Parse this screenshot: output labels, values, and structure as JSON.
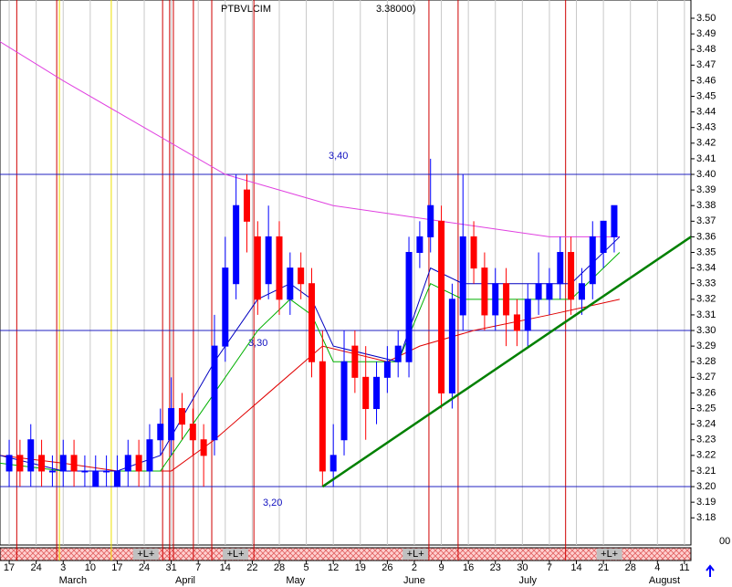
{
  "chart_data": {
    "type": "ohlc",
    "title": "PTBVLCIM",
    "title_tail": "3.38000)",
    "xlim": [
      -1.7,
      126.2
    ],
    "ylim": [
      3.1626,
      3.5117
    ],
    "x_grid": true,
    "xticks": [
      {
        "value": 0,
        "label": "17"
      },
      {
        "value": 5,
        "label": "24"
      },
      {
        "value": 10,
        "label": "3"
      },
      {
        "value": 15,
        "label": "10"
      },
      {
        "value": 20,
        "label": "17"
      },
      {
        "value": 25,
        "label": "24"
      },
      {
        "value": 30,
        "label": "31"
      },
      {
        "value": 35,
        "label": "7"
      },
      {
        "value": 40,
        "label": "14"
      },
      {
        "value": 45,
        "label": "22"
      },
      {
        "value": 50,
        "label": "28"
      },
      {
        "value": 55,
        "label": "5"
      },
      {
        "value": 60,
        "label": "12"
      },
      {
        "value": 65,
        "label": "19"
      },
      {
        "value": 70,
        "label": "26"
      },
      {
        "value": 75,
        "label": "2"
      },
      {
        "value": 80,
        "label": "9"
      },
      {
        "value": 85,
        "label": "16"
      },
      {
        "value": 90,
        "label": "23"
      },
      {
        "value": 95,
        "label": "30"
      },
      {
        "value": 100,
        "label": "7"
      },
      {
        "value": 105,
        "label": "14"
      },
      {
        "value": 110,
        "label": "21"
      },
      {
        "value": 115,
        "label": "28"
      },
      {
        "value": 120,
        "label": "4"
      },
      {
        "value": 125,
        "label": "11"
      }
    ],
    "month_ticks": [
      {
        "value": 11.8,
        "label": "March"
      },
      {
        "value": 32.6,
        "label": "April"
      },
      {
        "value": 53,
        "label": "May"
      },
      {
        "value": 75,
        "label": "June"
      },
      {
        "value": 96,
        "label": "July"
      },
      {
        "value": 121.3,
        "label": "August"
      }
    ],
    "yticks": [
      {
        "value": 3.18,
        "label": "3.18"
      },
      {
        "value": 3.19,
        "label": "3.19"
      },
      {
        "value": 3.2,
        "label": "3.20"
      },
      {
        "value": 3.21,
        "label": "3.21"
      },
      {
        "value": 3.22,
        "label": "3.22"
      },
      {
        "value": 3.23,
        "label": "3.23"
      },
      {
        "value": 3.24,
        "label": "3.24"
      },
      {
        "value": 3.25,
        "label": "3.25"
      },
      {
        "value": 3.26,
        "label": "3.26"
      },
      {
        "value": 3.27,
        "label": "3.27"
      },
      {
        "value": 3.28,
        "label": "3.28"
      },
      {
        "value": 3.29,
        "label": "3.29"
      },
      {
        "value": 3.3,
        "label": "3.30"
      },
      {
        "value": 3.31,
        "label": "3.31"
      },
      {
        "value": 3.32,
        "label": "3.32"
      },
      {
        "value": 3.33,
        "label": "3.33"
      },
      {
        "value": 3.34,
        "label": "3.34"
      },
      {
        "value": 3.35,
        "label": "3.35"
      },
      {
        "value": 3.36,
        "label": "3.36"
      },
      {
        "value": 3.37,
        "label": "3.37"
      },
      {
        "value": 3.38,
        "label": "3.38"
      },
      {
        "value": 3.39,
        "label": "3.39"
      },
      {
        "value": 3.4,
        "label": "3.40"
      },
      {
        "value": 3.41,
        "label": "3.41"
      },
      {
        "value": 3.42,
        "label": "3.42"
      },
      {
        "value": 3.43,
        "label": "3.43"
      },
      {
        "value": 3.44,
        "label": "3.44"
      },
      {
        "value": 3.45,
        "label": "3.45"
      },
      {
        "value": 3.46,
        "label": "3.46"
      },
      {
        "value": 3.47,
        "label": "3.47"
      },
      {
        "value": 3.48,
        "label": "3.48"
      },
      {
        "value": 3.49,
        "label": "3.49"
      },
      {
        "value": 3.5,
        "label": "3.50"
      }
    ],
    "volume_axis_label": "00",
    "up_color": "#0000ff",
    "down_color": "#ff0000",
    "ohlc": {
      "x": [
        0,
        2,
        4,
        6,
        8,
        10,
        12,
        14,
        16,
        18,
        20,
        22,
        24,
        26,
        28,
        30,
        32,
        34,
        36,
        38,
        40,
        42,
        44,
        46,
        48,
        50,
        52,
        54,
        56,
        58,
        60,
        62,
        64,
        66,
        68,
        70,
        72,
        74,
        76,
        78,
        80,
        82,
        84,
        86,
        88,
        90,
        92,
        94,
        96,
        98,
        100,
        102,
        104,
        106,
        108,
        110,
        112
      ],
      "open": [
        3.21,
        3.22,
        3.21,
        3.22,
        3.21,
        3.21,
        3.22,
        3.21,
        3.2,
        3.21,
        3.2,
        3.21,
        3.22,
        3.21,
        3.23,
        3.23,
        3.25,
        3.24,
        3.23,
        3.23,
        3.29,
        3.33,
        3.39,
        3.36,
        3.33,
        3.36,
        3.32,
        3.34,
        3.33,
        3.28,
        3.21,
        3.23,
        3.29,
        3.27,
        3.25,
        3.27,
        3.28,
        3.28,
        3.35,
        3.36,
        3.37,
        3.26,
        3.31,
        3.36,
        3.34,
        3.31,
        3.33,
        3.31,
        3.3,
        3.32,
        3.32,
        3.33,
        3.35,
        3.32,
        3.33,
        3.35,
        3.36
      ],
      "high": [
        3.23,
        3.23,
        3.24,
        3.23,
        3.22,
        3.23,
        3.23,
        3.22,
        3.22,
        3.22,
        3.22,
        3.23,
        3.23,
        3.24,
        3.25,
        3.27,
        3.26,
        3.25,
        3.24,
        3.31,
        3.36,
        3.4,
        3.4,
        3.37,
        3.38,
        3.37,
        3.35,
        3.35,
        3.34,
        3.3,
        3.24,
        3.3,
        3.3,
        3.29,
        3.28,
        3.29,
        3.3,
        3.36,
        3.37,
        3.41,
        3.38,
        3.33,
        3.4,
        3.37,
        3.35,
        3.34,
        3.34,
        3.32,
        3.33,
        3.35,
        3.34,
        3.36,
        3.36,
        3.34,
        3.37,
        3.37,
        3.38
      ],
      "low": [
        3.2,
        3.2,
        3.2,
        3.2,
        3.2,
        3.2,
        3.2,
        3.2,
        3.2,
        3.2,
        3.2,
        3.2,
        3.2,
        3.2,
        3.22,
        3.22,
        3.23,
        3.22,
        3.2,
        3.22,
        3.28,
        3.32,
        3.35,
        3.31,
        3.32,
        3.31,
        3.31,
        3.32,
        3.27,
        3.2,
        3.2,
        3.22,
        3.26,
        3.23,
        3.24,
        3.26,
        3.27,
        3.27,
        3.34,
        3.35,
        3.25,
        3.25,
        3.3,
        3.33,
        3.3,
        3.3,
        3.29,
        3.29,
        3.29,
        3.31,
        3.31,
        3.32,
        3.31,
        3.31,
        3.32,
        3.34,
        3.35
      ],
      "close": [
        3.22,
        3.21,
        3.23,
        3.21,
        3.21,
        3.22,
        3.21,
        3.21,
        3.21,
        3.21,
        3.21,
        3.22,
        3.21,
        3.23,
        3.24,
        3.25,
        3.24,
        3.23,
        3.22,
        3.29,
        3.34,
        3.38,
        3.37,
        3.32,
        3.36,
        3.32,
        3.34,
        3.33,
        3.28,
        3.21,
        3.22,
        3.28,
        3.27,
        3.25,
        3.27,
        3.28,
        3.29,
        3.35,
        3.36,
        3.38,
        3.26,
        3.32,
        3.36,
        3.34,
        3.31,
        3.33,
        3.31,
        3.3,
        3.32,
        3.33,
        3.33,
        3.35,
        3.32,
        3.33,
        3.36,
        3.37,
        3.38
      ]
    },
    "lines": [
      {
        "color": "#e040e0",
        "x": [
          -1.7,
          10,
          20,
          30,
          40,
          50,
          60,
          70,
          80,
          90,
          100,
          113
        ],
        "values": [
          3.485,
          3.46,
          3.44,
          3.42,
          3.4,
          3.39,
          3.38,
          3.375,
          3.37,
          3.365,
          3.36,
          3.36
        ]
      },
      {
        "color": "#e00000",
        "x": [
          -1.7,
          10,
          20,
          30,
          38,
          48,
          58,
          70,
          76,
          86,
          100,
          113
        ],
        "values": [
          3.22,
          3.215,
          3.21,
          3.21,
          3.23,
          3.26,
          3.29,
          3.28,
          3.29,
          3.3,
          3.31,
          3.32
        ]
      },
      {
        "color": "#00b000",
        "x": [
          -1.7,
          10,
          20,
          28,
          38,
          46,
          52,
          56,
          60,
          72,
          78,
          84,
          90,
          104,
          113
        ],
        "values": [
          3.215,
          3.21,
          3.21,
          3.21,
          3.26,
          3.3,
          3.32,
          3.31,
          3.28,
          3.28,
          3.33,
          3.32,
          3.32,
          3.32,
          3.35
        ]
      },
      {
        "color": "#0000c0",
        "x": [
          -1.7,
          10,
          20,
          28,
          38,
          46,
          52,
          56,
          60,
          72,
          78,
          84,
          90,
          104,
          113
        ],
        "values": [
          3.22,
          3.21,
          3.21,
          3.22,
          3.28,
          3.32,
          3.33,
          3.32,
          3.29,
          3.28,
          3.34,
          3.33,
          3.33,
          3.33,
          3.36
        ]
      }
    ],
    "trendline": {
      "color": "#008000",
      "x": [
        58,
        126.2
      ],
      "values": [
        3.2,
        3.36
      ]
    },
    "levels": [
      {
        "value": 3.4,
        "label": "3,40"
      },
      {
        "value": 3.3,
        "label": "3,30"
      },
      {
        "value": 3.2,
        "label": "3,20"
      }
    ],
    "event_lines": [
      {
        "x": 1.4,
        "color": "#d00000"
      },
      {
        "x": 8.8,
        "color": "#d00000"
      },
      {
        "x": 9.3,
        "color": "#f0e000"
      },
      {
        "x": 18.9,
        "color": "#f0e000"
      },
      {
        "x": 28.4,
        "color": "#d00000"
      },
      {
        "x": 29.7,
        "color": "#d00000"
      },
      {
        "x": 30.4,
        "color": "#d00000"
      },
      {
        "x": 34.1,
        "color": "#d00000"
      },
      {
        "x": 37.5,
        "color": "#d00000"
      },
      {
        "x": 45.3,
        "color": "#d00000"
      },
      {
        "x": 77.7,
        "color": "#d00000"
      },
      {
        "x": 83.1,
        "color": "#d00000"
      },
      {
        "x": 103,
        "color": "#d00000"
      }
    ],
    "band_labels": [
      {
        "x": 25.3,
        "label": "+L+"
      },
      {
        "x": 41.9,
        "label": "+L+"
      },
      {
        "x": 75.2,
        "label": "+L+"
      },
      {
        "x": 111.1,
        "label": "+L+"
      }
    ]
  }
}
